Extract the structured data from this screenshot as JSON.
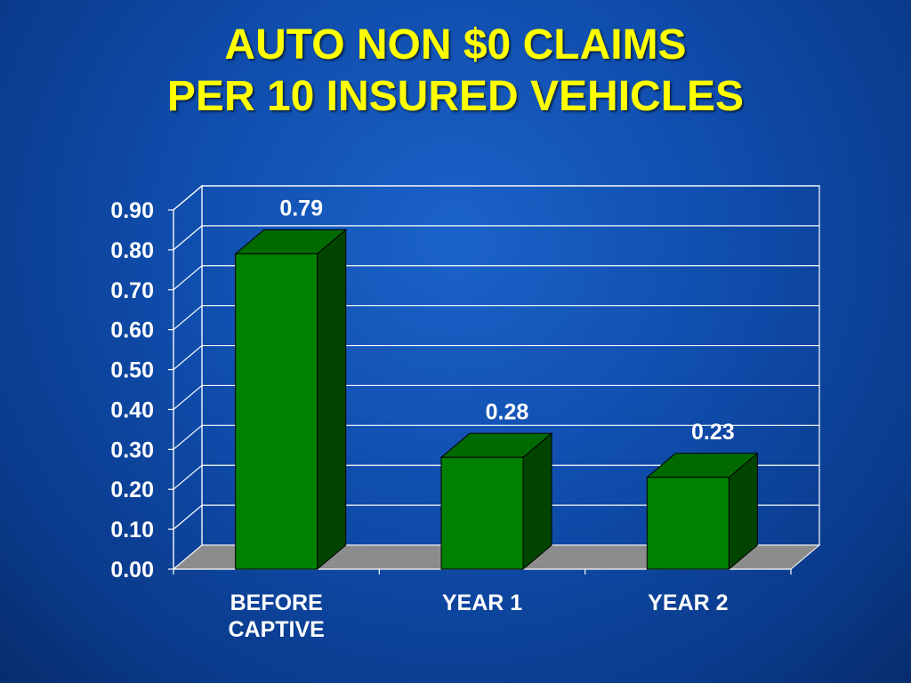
{
  "slide": {
    "title_line1": "AUTO NON $0 CLAIMS",
    "title_line2": "PER 10 INSURED VEHICLES"
  },
  "colors": {
    "background": "#0f4cab",
    "title": "#ffff00",
    "bar_front": "#008000",
    "bar_top": "#006a00",
    "bar_side": "#004400",
    "floor": "#8c8c8c",
    "label_text": "#ffffff"
  },
  "chart_data": {
    "type": "bar",
    "title": "AUTO NON $0 CLAIMS PER 10 INSURED VEHICLES",
    "categories": [
      [
        "BEFORE",
        "CAPTIVE"
      ],
      [
        "YEAR 1"
      ],
      [
        "YEAR 2"
      ]
    ],
    "values": [
      0.79,
      0.28,
      0.23
    ],
    "data_labels": [
      "0.79",
      "0.28",
      "0.23"
    ],
    "ylim": [
      0,
      0.9
    ],
    "yticks": [
      "0.00",
      "0.10",
      "0.20",
      "0.30",
      "0.40",
      "0.50",
      "0.60",
      "0.70",
      "0.80",
      "0.90"
    ],
    "xlabel": "",
    "ylabel": "",
    "grid": true,
    "three_d": true
  }
}
